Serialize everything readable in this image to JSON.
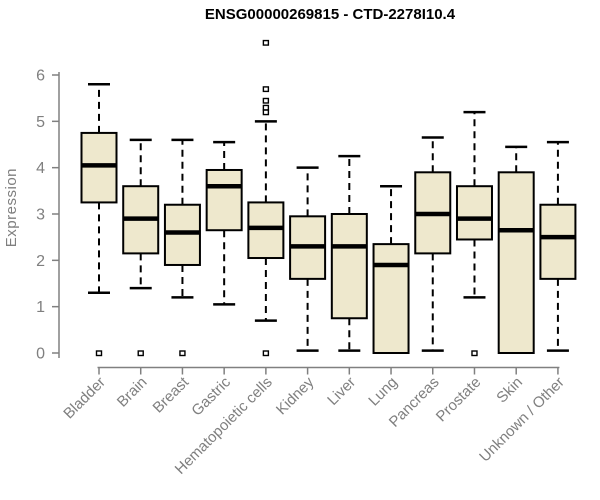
{
  "title": "ENSG00000269815 - CTD-2278I10.4",
  "ylabel": "Expression",
  "chart_data": {
    "type": "boxplot",
    "title": "ENSG00000269815 - CTD-2278I10.4",
    "xlabel": "",
    "ylabel": "Expression",
    "ylim": [
      0,
      6.8
    ],
    "yticks": [
      0,
      1,
      2,
      3,
      4,
      5,
      6
    ],
    "grid": false,
    "legend": "none",
    "categories": [
      "Bladder",
      "Brain",
      "Breast",
      "Gastric",
      "Hematopoietic cells",
      "Kidney",
      "Liver",
      "Lung",
      "Pancreas",
      "Prostate",
      "Skin",
      "Unknown / Other"
    ],
    "series": [
      {
        "category": "Bladder",
        "low": 1.3,
        "q1": 3.25,
        "median": 4.05,
        "q3": 4.75,
        "high": 5.8,
        "outliers": [
          0
        ]
      },
      {
        "category": "Brain",
        "low": 1.4,
        "q1": 2.15,
        "median": 2.9,
        "q3": 3.6,
        "high": 4.6,
        "outliers": [
          0
        ]
      },
      {
        "category": "Breast",
        "low": 1.2,
        "q1": 1.9,
        "median": 2.6,
        "q3": 3.2,
        "high": 4.6,
        "outliers": [
          0
        ]
      },
      {
        "category": "Gastric",
        "low": 1.05,
        "q1": 2.65,
        "median": 3.6,
        "q3": 3.95,
        "high": 4.55,
        "outliers": []
      },
      {
        "category": "Hematopoietic cells",
        "low": 0.7,
        "q1": 2.05,
        "median": 2.7,
        "q3": 3.25,
        "high": 5.0,
        "outliers": [
          6.7,
          5.7,
          5.45,
          5.3,
          5.2,
          0
        ]
      },
      {
        "category": "Kidney",
        "low": 0.05,
        "q1": 1.6,
        "median": 2.3,
        "q3": 2.95,
        "high": 4.0,
        "outliers": []
      },
      {
        "category": "Liver",
        "low": 0.05,
        "q1": 0.75,
        "median": 2.3,
        "q3": 3.0,
        "high": 4.25,
        "outliers": []
      },
      {
        "category": "Lung",
        "low": 0,
        "q1": 0,
        "median": 1.9,
        "q3": 2.35,
        "high": 3.6,
        "outliers": []
      },
      {
        "category": "Pancreas",
        "low": 0.05,
        "q1": 2.15,
        "median": 3.0,
        "q3": 3.9,
        "high": 4.65,
        "outliers": []
      },
      {
        "category": "Prostate",
        "low": 1.2,
        "q1": 2.45,
        "median": 2.9,
        "q3": 3.6,
        "high": 5.2,
        "outliers": [
          0
        ]
      },
      {
        "category": "Skin",
        "low": 0,
        "q1": 0,
        "median": 2.65,
        "q3": 3.9,
        "high": 4.45,
        "outliers": []
      },
      {
        "category": "Unknown / Other",
        "low": 0.05,
        "q1": 1.6,
        "median": 2.5,
        "q3": 3.2,
        "high": 4.55,
        "outliers": []
      }
    ],
    "colors": {
      "box_fill": "#EEE8CD",
      "box_stroke": "#000000",
      "median": "#000000",
      "whisker": "#000000",
      "axis": "#808080",
      "tick_label": "#7f7f7f",
      "title": "#000000",
      "background": "#ffffff"
    }
  }
}
